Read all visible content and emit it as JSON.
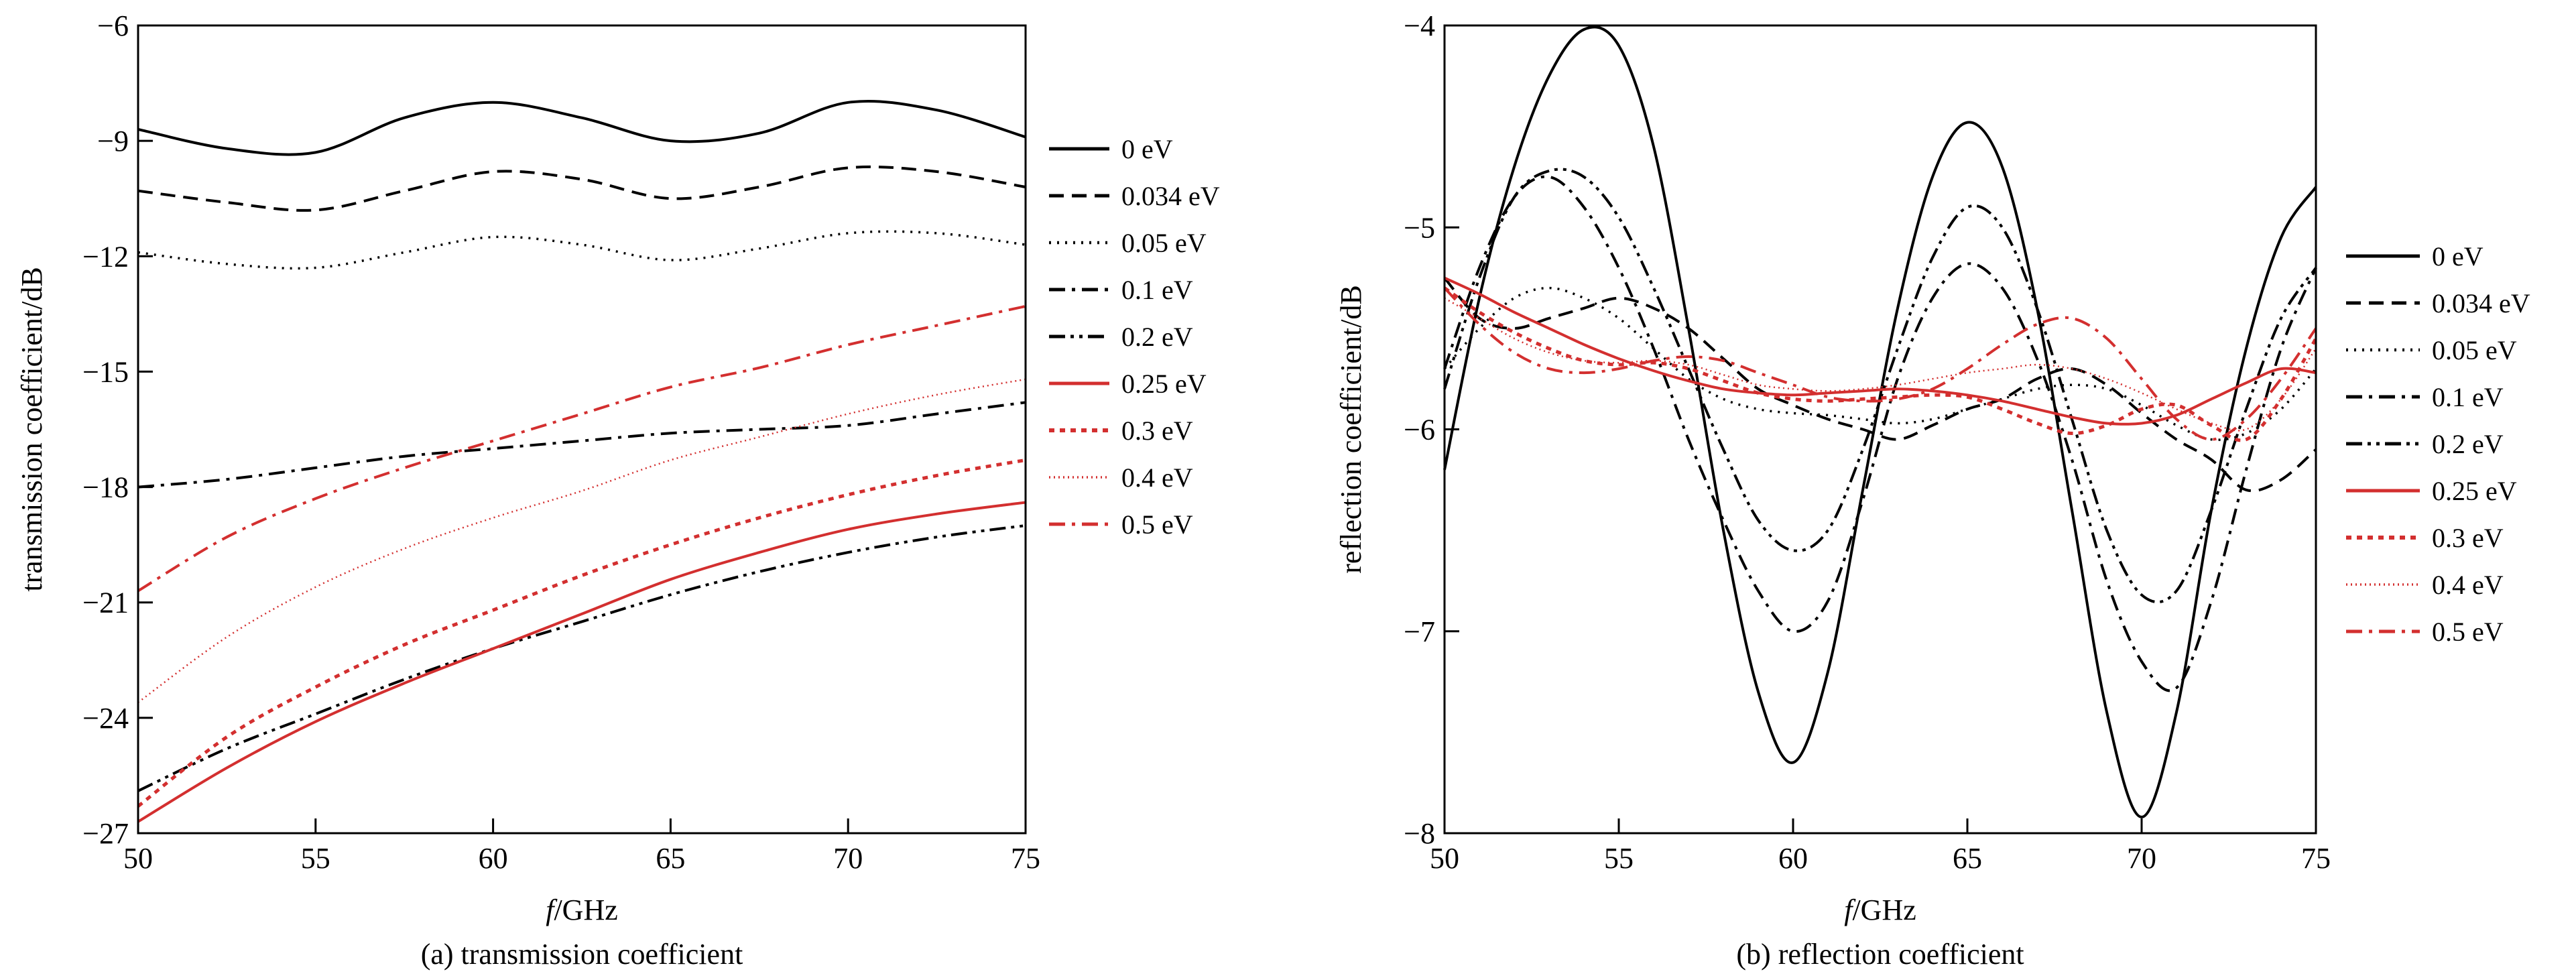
{
  "chart_data": [
    {
      "id": "a",
      "type": "line",
      "title": "",
      "caption": "(a) transmission coefficient",
      "xlabel_italic": "f",
      "xlabel_rest": "/GHz",
      "ylabel": "transmission coefficient/dB",
      "xlim": [
        50,
        75
      ],
      "ylim": [
        -27,
        -6
      ],
      "xticks": [
        50,
        55,
        60,
        65,
        70,
        75
      ],
      "yticks": [
        -27,
        -24,
        -21,
        -18,
        -15,
        -12,
        -9,
        -6
      ],
      "grid": false,
      "legend_position": "right",
      "x": [
        50,
        52.5,
        55,
        57.5,
        60,
        62.5,
        65,
        67.5,
        70,
        72.5,
        75
      ],
      "series": [
        {
          "name": "0 eV",
          "color": "#000000",
          "dash": "solid",
          "values": [
            -8.7,
            -9.2,
            -9.3,
            -8.4,
            -8.0,
            -8.4,
            -9.0,
            -8.8,
            -8.0,
            -8.2,
            -8.9
          ]
        },
        {
          "name": "0.034 eV",
          "color": "#000000",
          "dash": "dashed",
          "values": [
            -10.3,
            -10.6,
            -10.8,
            -10.3,
            -9.8,
            -10.0,
            -10.5,
            -10.2,
            -9.7,
            -9.8,
            -10.2
          ]
        },
        {
          "name": "0.05 eV",
          "color": "#000000",
          "dash": "dotted",
          "values": [
            -11.9,
            -12.2,
            -12.3,
            -11.9,
            -11.5,
            -11.7,
            -12.1,
            -11.8,
            -11.4,
            -11.4,
            -11.7
          ]
        },
        {
          "name": "0.1 eV",
          "color": "#000000",
          "dash": "dashdot",
          "values": [
            -18.0,
            -17.8,
            -17.5,
            -17.2,
            -17.0,
            -16.8,
            -16.6,
            -16.5,
            -16.4,
            -16.1,
            -15.8
          ]
        },
        {
          "name": "0.2 eV",
          "color": "#000000",
          "dash": "dashdotdot",
          "values": [
            -25.9,
            -24.8,
            -23.9,
            -23.0,
            -22.2,
            -21.5,
            -20.8,
            -20.2,
            -19.7,
            -19.3,
            -19.0
          ]
        },
        {
          "name": "0.25 eV",
          "color": "#d32f2f",
          "dash": "solid",
          "values": [
            -26.7,
            -25.3,
            -24.1,
            -23.1,
            -22.2,
            -21.3,
            -20.4,
            -19.7,
            -19.1,
            -18.7,
            -18.4
          ]
        },
        {
          "name": "0.3 eV",
          "color": "#d32f2f",
          "dash": "dotted-thick",
          "values": [
            -26.3,
            -24.5,
            -23.2,
            -22.1,
            -21.2,
            -20.3,
            -19.5,
            -18.8,
            -18.2,
            -17.7,
            -17.3
          ]
        },
        {
          "name": "0.4 eV",
          "color": "#d32f2f",
          "dash": "fine-dotted",
          "values": [
            -23.6,
            -21.9,
            -20.6,
            -19.6,
            -18.8,
            -18.1,
            -17.3,
            -16.7,
            -16.1,
            -15.6,
            -15.2
          ]
        },
        {
          "name": "0.5 eV",
          "color": "#d32f2f",
          "dash": "dashdot",
          "values": [
            -20.7,
            -19.3,
            -18.3,
            -17.5,
            -16.8,
            -16.1,
            -15.4,
            -14.9,
            -14.3,
            -13.8,
            -13.3
          ]
        }
      ]
    },
    {
      "id": "b",
      "type": "line",
      "title": "",
      "caption": "(b) reflection coefficient",
      "xlabel_italic": "f",
      "xlabel_rest": "/GHz",
      "ylabel": "reflection coefficient/dB",
      "xlim": [
        50,
        75
      ],
      "ylim": [
        -8,
        -4
      ],
      "xticks": [
        50,
        55,
        60,
        65,
        70,
        75
      ],
      "yticks": [
        -8,
        -7,
        -6,
        -5,
        -4
      ],
      "grid": false,
      "legend_position": "right",
      "x": [
        50,
        51,
        52,
        53,
        54,
        55,
        56,
        57,
        58,
        59,
        60,
        61,
        62,
        63,
        64,
        65,
        66,
        67,
        68,
        69,
        70,
        71,
        72,
        73,
        74,
        75
      ],
      "series": [
        {
          "name": "0 eV",
          "color": "#000000",
          "dash": "solid",
          "values": [
            -6.2,
            -5.35,
            -4.7,
            -4.25,
            -4.02,
            -4.1,
            -4.6,
            -5.5,
            -6.5,
            -7.3,
            -7.65,
            -7.2,
            -6.3,
            -5.4,
            -4.75,
            -4.48,
            -4.7,
            -5.4,
            -6.4,
            -7.4,
            -7.92,
            -7.4,
            -6.4,
            -5.6,
            -5.05,
            -4.8
          ]
        },
        {
          "name": "0.034 eV",
          "color": "#000000",
          "dash": "dashed",
          "values": [
            -5.25,
            -5.45,
            -5.5,
            -5.45,
            -5.4,
            -5.35,
            -5.4,
            -5.5,
            -5.65,
            -5.8,
            -5.88,
            -5.95,
            -6.0,
            -6.05,
            -5.98,
            -5.9,
            -5.85,
            -5.75,
            -5.7,
            -5.78,
            -5.92,
            -6.05,
            -6.15,
            -6.3,
            -6.25,
            -6.1
          ]
        },
        {
          "name": "0.05 eV",
          "color": "#000000",
          "dash": "dotted",
          "values": [
            -5.7,
            -5.5,
            -5.35,
            -5.3,
            -5.35,
            -5.45,
            -5.6,
            -5.75,
            -5.85,
            -5.9,
            -5.92,
            -5.93,
            -5.95,
            -5.97,
            -5.95,
            -5.9,
            -5.85,
            -5.8,
            -5.78,
            -5.8,
            -5.88,
            -5.98,
            -6.05,
            -6.02,
            -5.9,
            -5.7
          ]
        },
        {
          "name": "0.1 eV",
          "color": "#000000",
          "dash": "dashdot",
          "values": [
            -5.7,
            -5.2,
            -4.85,
            -4.75,
            -4.9,
            -5.2,
            -5.6,
            -6.05,
            -6.45,
            -6.8,
            -7.0,
            -6.85,
            -6.35,
            -5.75,
            -5.35,
            -5.18,
            -5.3,
            -5.65,
            -6.15,
            -6.75,
            -7.15,
            -7.28,
            -6.85,
            -6.2,
            -5.6,
            -5.2
          ]
        },
        {
          "name": "0.2 eV",
          "color": "#000000",
          "dash": "dashdotdot",
          "values": [
            -5.8,
            -5.25,
            -4.85,
            -4.72,
            -4.75,
            -4.95,
            -5.3,
            -5.7,
            -6.1,
            -6.45,
            -6.6,
            -6.5,
            -6.1,
            -5.6,
            -5.15,
            -4.9,
            -5.0,
            -5.4,
            -5.95,
            -6.5,
            -6.82,
            -6.8,
            -6.4,
            -5.9,
            -5.45,
            -5.2
          ]
        },
        {
          "name": "0.25 eV",
          "color": "#d32f2f",
          "dash": "solid",
          "values": [
            -5.25,
            -5.33,
            -5.42,
            -5.5,
            -5.58,
            -5.65,
            -5.71,
            -5.76,
            -5.8,
            -5.82,
            -5.83,
            -5.82,
            -5.81,
            -5.8,
            -5.81,
            -5.83,
            -5.86,
            -5.9,
            -5.94,
            -5.97,
            -5.97,
            -5.93,
            -5.85,
            -5.77,
            -5.7,
            -5.72
          ]
        },
        {
          "name": "0.3 eV",
          "color": "#d32f2f",
          "dash": "dotted-thick",
          "values": [
            -5.3,
            -5.42,
            -5.52,
            -5.6,
            -5.66,
            -5.68,
            -5.67,
            -5.7,
            -5.76,
            -5.82,
            -5.85,
            -5.86,
            -5.85,
            -5.84,
            -5.83,
            -5.84,
            -5.9,
            -5.97,
            -6.02,
            -5.98,
            -5.9,
            -5.88,
            -5.98,
            -6.05,
            -5.85,
            -5.55
          ]
        },
        {
          "name": "0.4 eV",
          "color": "#d32f2f",
          "dash": "fine-dotted",
          "values": [
            -5.35,
            -5.45,
            -5.55,
            -5.62,
            -5.66,
            -5.67,
            -5.66,
            -5.68,
            -5.73,
            -5.78,
            -5.8,
            -5.81,
            -5.8,
            -5.78,
            -5.75,
            -5.72,
            -5.7,
            -5.68,
            -5.7,
            -5.75,
            -5.82,
            -5.9,
            -5.97,
            -6.0,
            -5.85,
            -5.6
          ]
        },
        {
          "name": "0.5 eV",
          "color": "#d32f2f",
          "dash": "dashdot",
          "values": [
            -5.3,
            -5.48,
            -5.62,
            -5.7,
            -5.72,
            -5.7,
            -5.66,
            -5.64,
            -5.66,
            -5.72,
            -5.78,
            -5.84,
            -5.86,
            -5.85,
            -5.8,
            -5.7,
            -5.58,
            -5.48,
            -5.45,
            -5.55,
            -5.75,
            -5.95,
            -6.05,
            -5.95,
            -5.75,
            -5.5
          ]
        }
      ]
    }
  ]
}
